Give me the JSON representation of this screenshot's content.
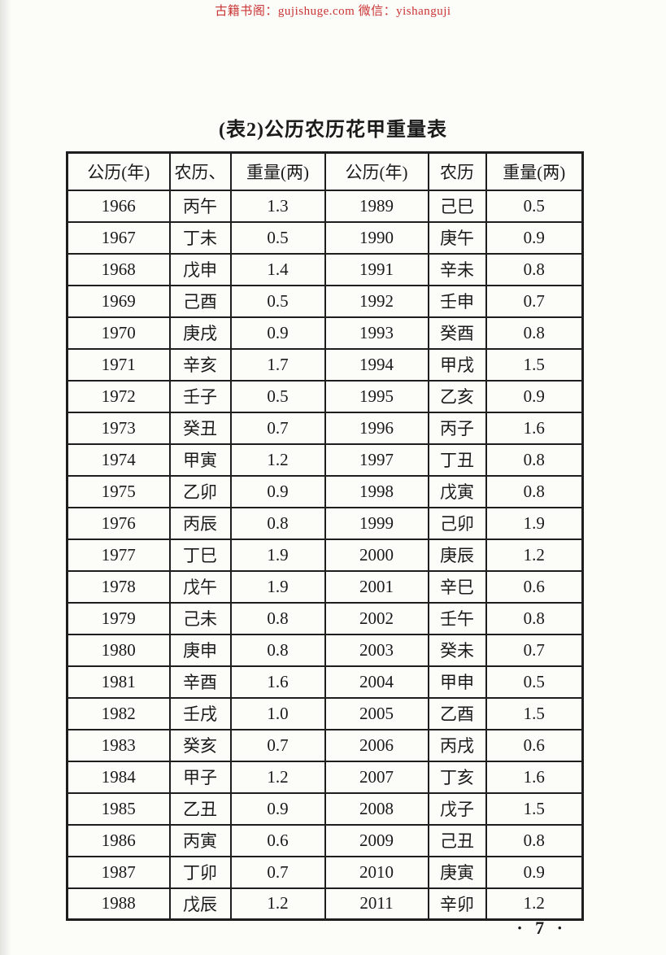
{
  "watermark": {
    "text": "古籍书阁：gujishuge.com 微信：yishanguji"
  },
  "title": "(表2)公历农历花甲重量表",
  "table": {
    "headers": [
      "公历(年)",
      "农历、",
      "重量(两)",
      "公历(年)",
      "农历",
      "重量(两)"
    ],
    "rows": [
      [
        "1966",
        "丙午",
        "1.3",
        "1989",
        "己巳",
        "0.5"
      ],
      [
        "1967",
        "丁未",
        "0.5",
        "1990",
        "庚午",
        "0.9"
      ],
      [
        "1968",
        "戊申",
        "1.4",
        "1991",
        "辛未",
        "0.8"
      ],
      [
        "1969",
        "己酉",
        "0.5",
        "1992",
        "壬申",
        "0.7"
      ],
      [
        "1970",
        "庚戌",
        "0.9",
        "1993",
        "癸酉",
        "0.8"
      ],
      [
        "1971",
        "辛亥",
        "1.7",
        "1994",
        "甲戌",
        "1.5"
      ],
      [
        "1972",
        "壬子",
        "0.5",
        "1995",
        "乙亥",
        "0.9"
      ],
      [
        "1973",
        "癸丑",
        "0.7",
        "1996",
        "丙子",
        "1.6"
      ],
      [
        "1974",
        "甲寅",
        "1.2",
        "1997",
        "丁丑",
        "0.8"
      ],
      [
        "1975",
        "乙卯",
        "0.9",
        "1998",
        "戊寅",
        "0.8"
      ],
      [
        "1976",
        "丙辰",
        "0.8",
        "1999",
        "己卯",
        "1.9"
      ],
      [
        "1977",
        "丁巳",
        "1.9",
        "2000",
        "庚辰",
        "1.2"
      ],
      [
        "1978",
        "戊午",
        "1.9",
        "2001",
        "辛巳",
        "0.6"
      ],
      [
        "1979",
        "己未",
        "0.8",
        "2002",
        "壬午",
        "0.8"
      ],
      [
        "1980",
        "庚申",
        "0.8",
        "2003",
        "癸未",
        "0.7"
      ],
      [
        "1981",
        "辛酉",
        "1.6",
        "2004",
        "甲申",
        "0.5"
      ],
      [
        "1982",
        "壬戌",
        "1.0",
        "2005",
        "乙酉",
        "1.5"
      ],
      [
        "1983",
        "癸亥",
        "0.7",
        "2006",
        "丙戌",
        "0.6"
      ],
      [
        "1984",
        "甲子",
        "1.2",
        "2007",
        "丁亥",
        "1.6"
      ],
      [
        "1985",
        "乙丑",
        "0.9",
        "2008",
        "戊子",
        "1.5"
      ],
      [
        "1986",
        "丙寅",
        "0.6",
        "2009",
        "己丑",
        "0.8"
      ],
      [
        "1987",
        "丁卯",
        "0.7",
        "2010",
        "庚寅",
        "0.9"
      ],
      [
        "1988",
        "戊辰",
        "1.2",
        "2011",
        "辛卯",
        "1.2"
      ]
    ]
  },
  "page_number": "· 7 ·"
}
